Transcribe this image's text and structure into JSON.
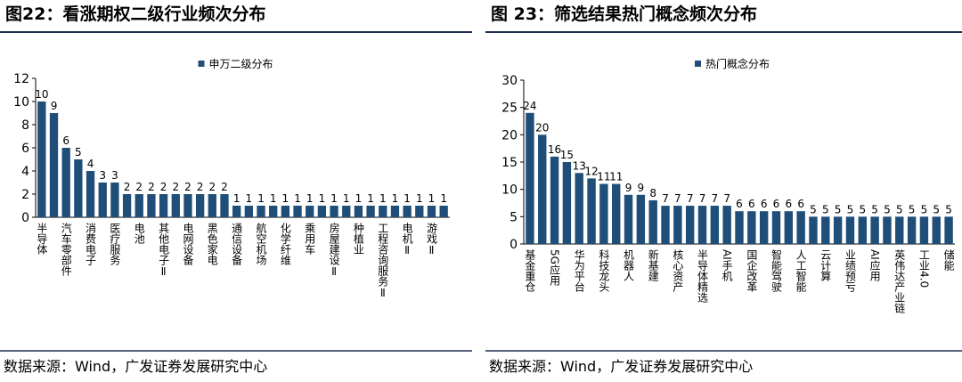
{
  "chart_data": [
    {
      "type": "bar",
      "title": "图22：看涨期权二级行业频次分布",
      "legend_label": "申万二级分布",
      "legend": "top",
      "color": "#1f4e79",
      "categories": [
        "半导体",
        null,
        "汽车零部件",
        null,
        "消费电子",
        null,
        "医疗服务",
        null,
        "电池",
        null,
        "其他电子Ⅱ",
        null,
        "电网设备",
        null,
        "黑色家电",
        null,
        "通信设备",
        null,
        "航空机场",
        null,
        "化学纤维",
        null,
        "乘用车",
        null,
        "房屋建设Ⅱ",
        null,
        "种植业",
        null,
        "工程咨询服务Ⅱ",
        null,
        "电机Ⅱ",
        null,
        "游戏Ⅱ",
        null
      ],
      "values": [
        10,
        9,
        6,
        5,
        4,
        3,
        3,
        2,
        2,
        2,
        2,
        2,
        2,
        2,
        2,
        2,
        1,
        1,
        1,
        1,
        1,
        1,
        1,
        1,
        1,
        1,
        1,
        1,
        1,
        1,
        1,
        1,
        1,
        1
      ],
      "ylim": [
        0,
        12
      ],
      "yticks": [
        0,
        2,
        4,
        6,
        8,
        10,
        12
      ],
      "source": "数据来源：Wind，广发证券发展研究中心"
    },
    {
      "type": "bar",
      "title": "图 23：筛选结果热门概念频次分布",
      "legend_label": "热门概念分布",
      "legend": "top",
      "color": "#1f4e79",
      "categories": [
        "基金重仓",
        null,
        "5G应用",
        null,
        "华为平台",
        null,
        "科技龙头",
        null,
        "机器人",
        null,
        "新基建",
        null,
        "核心资产",
        null,
        "半导体精选",
        null,
        "AI手机",
        null,
        "国企改革",
        null,
        "智能驾驶",
        null,
        "人工智能",
        null,
        "云计算",
        null,
        "业绩预亏",
        null,
        "AI应用",
        null,
        "英伟达产业链",
        null,
        "工业4.0",
        null,
        "储能"
      ],
      "values": [
        24,
        20,
        16,
        15,
        13,
        12,
        11,
        11,
        9,
        9,
        8,
        7,
        7,
        7,
        7,
        7,
        7,
        6,
        6,
        6,
        6,
        6,
        6,
        5,
        5,
        5,
        5,
        5,
        5,
        5,
        5,
        5,
        5,
        5,
        5
      ],
      "ylim": [
        0,
        30
      ],
      "yticks": [
        0,
        5,
        10,
        15,
        20,
        25,
        30
      ],
      "source": "数据来源：Wind，广发证券发展研究中心"
    }
  ]
}
